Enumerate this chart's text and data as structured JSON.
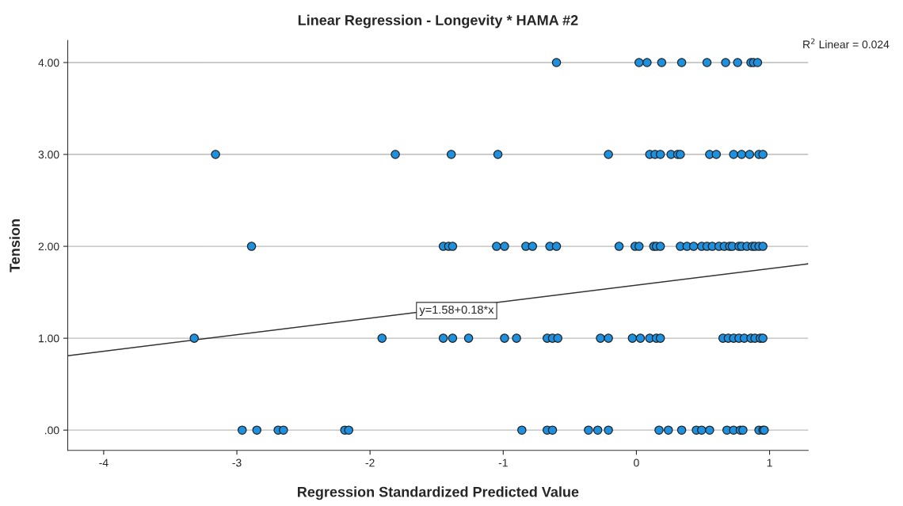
{
  "chart_data": {
    "type": "scatter",
    "title": "Linear Regression - Longevity * HAMA #2",
    "xlabel": "Regression Standardized Predicted Value",
    "ylabel": "Tension",
    "xlim": [
      -4.27,
      1.29
    ],
    "ylim": [
      -0.22,
      4.24
    ],
    "xticks": [
      -4,
      -3,
      -2,
      -1,
      0,
      1
    ],
    "yticks": [
      {
        "value": 0,
        "label": ".00"
      },
      {
        "value": 1,
        "label": "1.00"
      },
      {
        "value": 2,
        "label": "2.00"
      },
      {
        "value": 3,
        "label": "3.00"
      },
      {
        "value": 4,
        "label": "4.00"
      }
    ],
    "grid": "y",
    "legend": false,
    "series": [
      {
        "marker": "circle",
        "color": "#1e90e0",
        "x": [
          -0.6,
          0.02,
          0.08,
          0.19,
          0.34,
          0.53,
          0.67,
          0.76,
          0.86,
          0.88,
          0.91,
          -3.16,
          -1.81,
          -1.39,
          -1.04,
          -0.21,
          0.1,
          0.14,
          0.18,
          0.26,
          0.31,
          0.33,
          0.55,
          0.6,
          0.73,
          0.79,
          0.85,
          0.92,
          0.95,
          -2.89,
          -1.45,
          -1.41,
          -1.38,
          -1.05,
          -0.99,
          -0.83,
          -0.78,
          -0.65,
          -0.6,
          -0.13,
          -0.01,
          0.02,
          0.13,
          0.15,
          0.18,
          0.33,
          0.38,
          0.43,
          0.49,
          0.53,
          0.57,
          0.62,
          0.66,
          0.7,
          0.72,
          0.77,
          0.79,
          0.83,
          0.87,
          0.89,
          0.92,
          0.95,
          -3.32,
          -1.91,
          -1.45,
          -1.38,
          -1.26,
          -0.99,
          -0.9,
          -0.67,
          -0.63,
          -0.59,
          -0.27,
          -0.21,
          -0.03,
          0.03,
          0.1,
          0.15,
          0.18,
          0.65,
          0.69,
          0.73,
          0.77,
          0.81,
          0.86,
          0.89,
          0.93,
          0.95,
          -2.96,
          -2.85,
          -2.69,
          -2.65,
          -2.19,
          -2.16,
          -0.86,
          -0.67,
          -0.63,
          -0.36,
          -0.29,
          -0.21,
          0.17,
          0.24,
          0.34,
          0.45,
          0.49,
          0.55,
          0.68,
          0.73,
          0.78,
          0.8,
          0.92,
          0.95,
          0.96
        ],
        "values": [
          4,
          4,
          4,
          4,
          4,
          4,
          4,
          4,
          4,
          4,
          4,
          3,
          3,
          3,
          3,
          3,
          3,
          3,
          3,
          3,
          3,
          3,
          3,
          3,
          3,
          3,
          3,
          3,
          3,
          2,
          2,
          2,
          2,
          2,
          2,
          2,
          2,
          2,
          2,
          2,
          2,
          2,
          2,
          2,
          2,
          2,
          2,
          2,
          2,
          2,
          2,
          2,
          2,
          2,
          2,
          2,
          2,
          2,
          2,
          2,
          2,
          2,
          1,
          1,
          1,
          1,
          1,
          1,
          1,
          1,
          1,
          1,
          1,
          1,
          1,
          1,
          1,
          1,
          1,
          1,
          1,
          1,
          1,
          1,
          1,
          1,
          1,
          1,
          0,
          0,
          0,
          0,
          0,
          0,
          0,
          0,
          0,
          0,
          0,
          0,
          0,
          0,
          0,
          0,
          0,
          0,
          0,
          0,
          0,
          0,
          0,
          0,
          0
        ]
      },
      {
        "type": "line",
        "color": "#333333",
        "x": [
          -4.27,
          1.29
        ],
        "values": [
          0.81,
          1.81
        ]
      }
    ],
    "annotations": [
      {
        "text": "y=1.58+0.18*x",
        "x": -1.35,
        "y": 1.3
      },
      "R$^{2}$ Linear = 0.024"
    ]
  }
}
